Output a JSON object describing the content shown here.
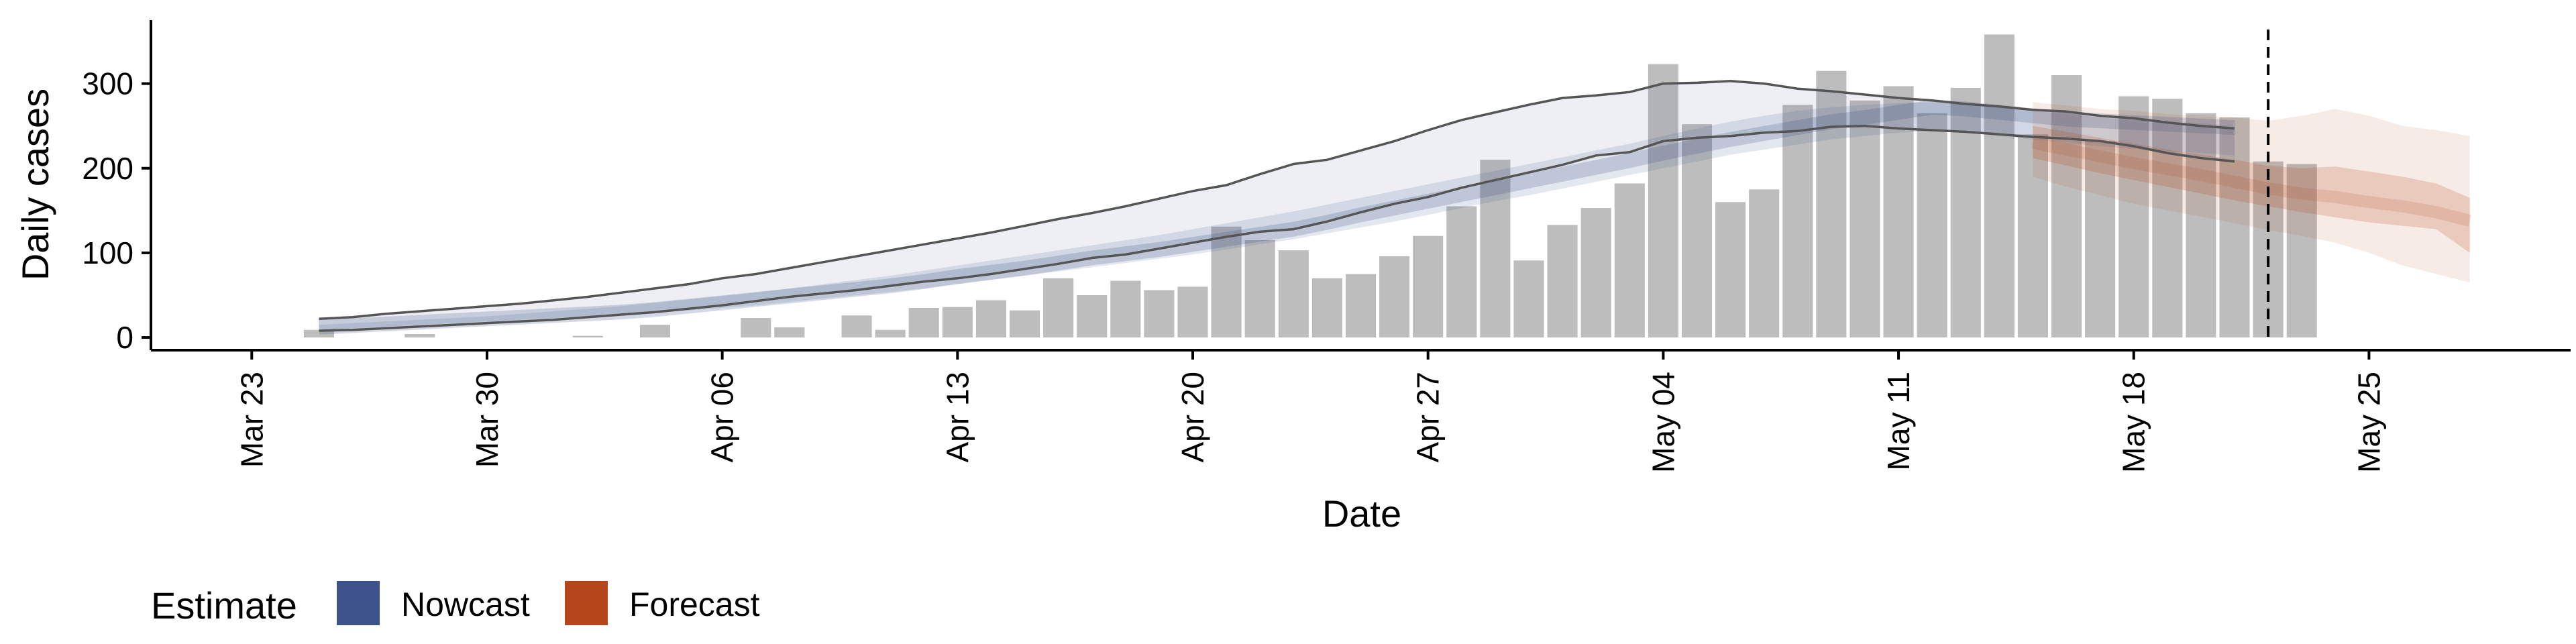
{
  "chart_data": {
    "type": "bar+line",
    "title": "",
    "xlabel": "Date",
    "ylabel": "Daily cases",
    "xlim": [
      "2020-03-20",
      "2020-05-31"
    ],
    "ylim": [
      -15,
      375
    ],
    "x_ticks": [
      {
        "date": "2020-03-23",
        "label": "Mar 23"
      },
      {
        "date": "2020-03-30",
        "label": "Mar 30"
      },
      {
        "date": "2020-04-06",
        "label": "Apr 06"
      },
      {
        "date": "2020-04-13",
        "label": "Apr 13"
      },
      {
        "date": "2020-04-20",
        "label": "Apr 20"
      },
      {
        "date": "2020-04-27",
        "label": "Apr 27"
      },
      {
        "date": "2020-05-04",
        "label": "May 04"
      },
      {
        "date": "2020-05-11",
        "label": "May 11"
      },
      {
        "date": "2020-05-18",
        "label": "May 18"
      },
      {
        "date": "2020-05-25",
        "label": "May 25"
      }
    ],
    "y_ticks": [
      0,
      100,
      200,
      300
    ],
    "grid": false,
    "vline_date": "2020-05-22",
    "bars": {
      "color": "#bdbdbd",
      "start_date": "2020-03-25",
      "values": [
        9,
        0,
        0,
        4,
        0,
        0,
        0,
        0,
        2,
        0,
        15,
        0,
        0,
        23,
        12,
        0,
        26,
        9,
        35,
        36,
        44,
        32,
        70,
        50,
        67,
        56,
        60,
        131,
        115,
        103,
        70,
        75,
        96,
        120,
        155,
        210,
        91,
        133,
        153,
        182,
        323,
        252,
        160,
        175,
        275,
        315,
        280,
        297,
        265,
        295,
        358,
        240,
        310,
        232,
        285,
        282,
        265,
        260,
        208,
        205
      ]
    },
    "nowcast": {
      "color": "#3c5289",
      "start_date": "2020-03-25",
      "median": [
        12,
        14,
        16,
        18,
        20,
        22,
        24,
        26,
        28,
        30,
        33,
        37,
        41,
        45,
        49,
        53,
        57,
        61,
        66,
        72,
        77,
        82,
        88,
        94,
        99,
        104,
        110,
        116,
        122,
        128,
        136,
        145,
        153,
        161,
        169,
        177,
        185,
        193,
        201,
        209,
        218,
        226,
        234,
        241,
        248,
        255,
        260,
        266,
        272,
        270,
        266,
        262,
        258,
        256,
        254,
        252,
        250,
        248
      ],
      "upper_90": [
        22,
        24,
        28,
        31,
        34,
        37,
        40,
        44,
        48,
        53,
        58,
        63,
        70,
        75,
        82,
        89,
        96,
        103,
        110,
        117,
        124,
        132,
        140,
        147,
        155,
        164,
        173,
        180,
        193,
        205,
        210,
        221,
        232,
        245,
        257,
        266,
        275,
        283,
        286,
        290,
        300,
        301,
        303,
        300,
        294,
        291,
        287,
        283,
        280,
        276,
        273,
        269,
        267,
        262,
        259,
        254,
        250,
        247
      ],
      "upper_50": [
        15,
        17,
        19,
        21,
        23,
        25,
        28,
        31,
        34,
        37,
        41,
        45,
        49,
        53,
        58,
        63,
        68,
        73,
        79,
        85,
        91,
        97,
        103,
        109,
        115,
        121,
        128,
        135,
        142,
        149,
        157,
        165,
        173,
        181,
        189,
        197,
        205,
        213,
        221,
        229,
        238,
        247,
        255,
        262,
        268,
        272,
        275,
        277,
        278,
        276,
        272,
        268,
        264,
        260,
        257,
        255,
        253,
        250
      ],
      "lower_50": [
        9,
        11,
        13,
        15,
        17,
        19,
        21,
        23,
        25,
        27,
        29,
        32,
        35,
        38,
        42,
        46,
        50,
        54,
        58,
        63,
        68,
        73,
        78,
        83,
        88,
        93,
        98,
        104,
        110,
        116,
        123,
        130,
        137,
        145,
        153,
        161,
        168,
        176,
        184,
        192,
        200,
        208,
        216,
        222,
        228,
        234,
        238,
        242,
        244,
        242,
        238,
        234,
        230,
        226,
        223,
        220,
        218,
        215
      ],
      "lower_90": [
        8,
        9,
        11,
        13,
        15,
        17,
        19,
        21,
        24,
        27,
        30,
        34,
        38,
        43,
        48,
        52,
        56,
        61,
        66,
        70,
        75,
        81,
        87,
        94,
        98,
        105,
        112,
        119,
        125,
        128,
        137,
        148,
        158,
        166,
        177,
        186,
        195,
        204,
        215,
        219,
        232,
        236,
        238,
        242,
        244,
        249,
        250,
        247,
        245,
        243,
        240,
        237,
        235,
        232,
        226,
        218,
        212,
        208
      ]
    },
    "forecast": {
      "color": "#b5451b",
      "start_date": "2020-05-15",
      "median": [
        230,
        222,
        214,
        206,
        199,
        192,
        184,
        176,
        170,
        166,
        160,
        155,
        148,
        138
      ],
      "upper_90": [
        278,
        274,
        270,
        268,
        264,
        262,
        260,
        256,
        262,
        270,
        262,
        250,
        245,
        238
      ],
      "upper_50": [
        250,
        243,
        236,
        229,
        222,
        216,
        210,
        203,
        200,
        202,
        196,
        190,
        182,
        165
      ],
      "lower_50": [
        212,
        203,
        194,
        186,
        178,
        170,
        162,
        155,
        148,
        142,
        136,
        132,
        128,
        100
      ],
      "lower_90": [
        190,
        178,
        168,
        158,
        150,
        143,
        135,
        127,
        120,
        112,
        100,
        85,
        75,
        65
      ]
    },
    "legend": {
      "title": "Estimate",
      "position": "bottom-left",
      "items": [
        {
          "label": "Nowcast",
          "color": "#3c5289"
        },
        {
          "label": "Forecast",
          "color": "#b5451b"
        }
      ]
    }
  }
}
